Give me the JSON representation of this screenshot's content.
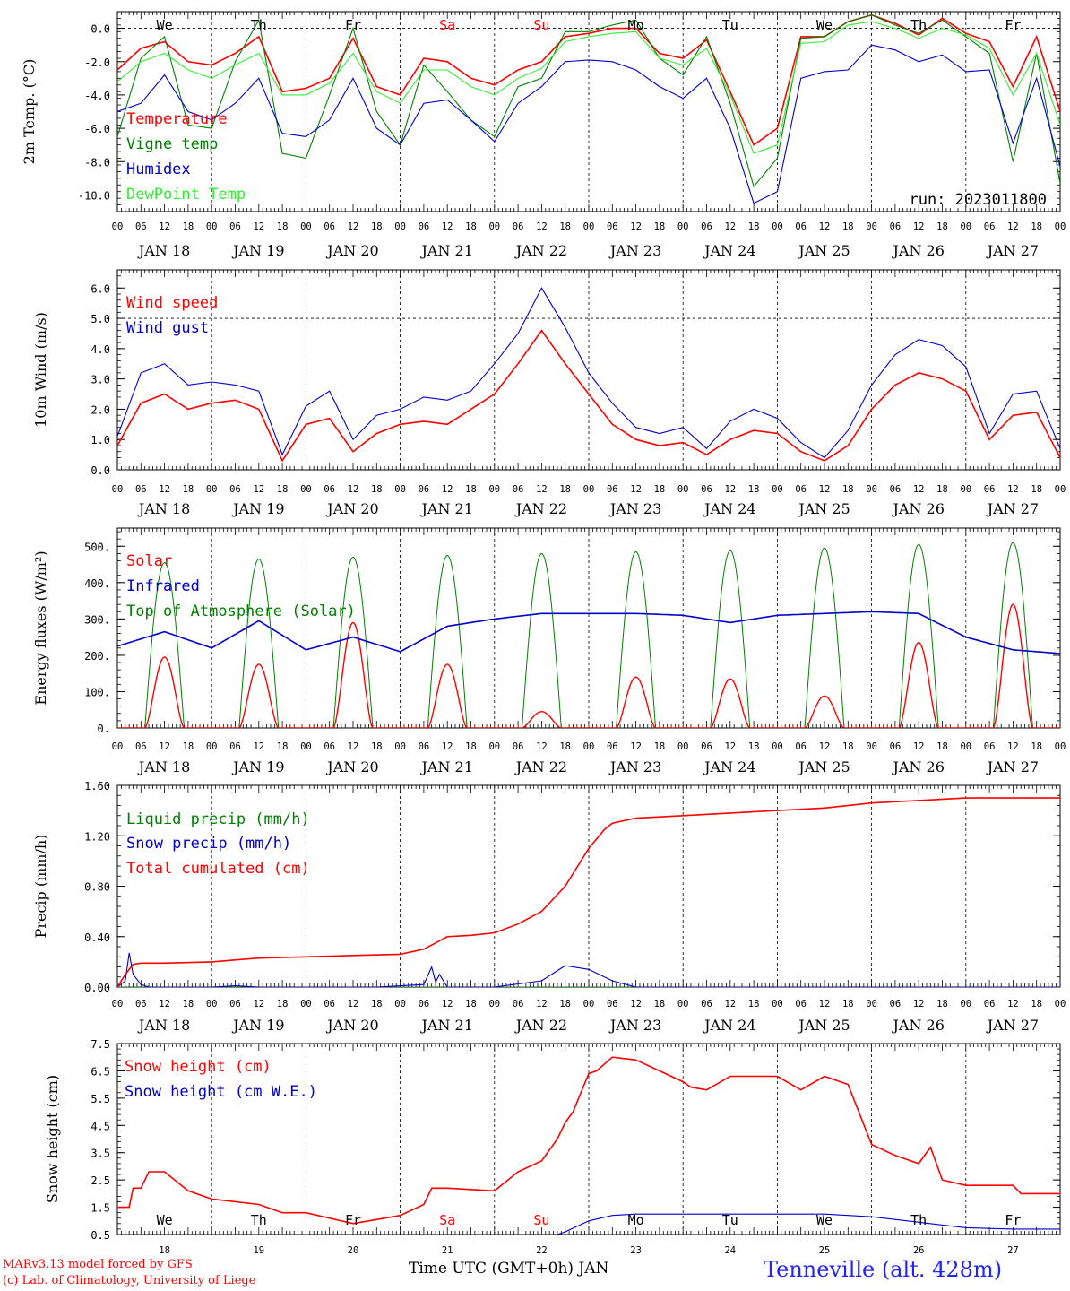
{
  "run_label": "run: 2023011800",
  "footer": {
    "model": "MARv3.13 model forced by GFS",
    "lab": "(c) Lab. of Climatology, University of Liege",
    "xaxis_title": "Time UTC (GMT+0h) JAN",
    "station": "Tenneville (alt. 428m)"
  },
  "days": [
    "18",
    "19",
    "20",
    "21",
    "22",
    "23",
    "24",
    "25",
    "26",
    "27"
  ],
  "date_labels": [
    "JAN 18",
    "JAN 19",
    "JAN 20",
    "JAN 21",
    "JAN 22",
    "JAN 23",
    "JAN 24",
    "JAN 25",
    "JAN 26",
    "JAN 27"
  ],
  "day_names": [
    "We",
    "Th",
    "Fr",
    "Sa",
    "Su",
    "Mo",
    "Tu",
    "We",
    "Th",
    "Fr"
  ],
  "day_name_colors": [
    "#000000",
    "#000000",
    "#000000",
    "#ff0000",
    "#ff0000",
    "#000000",
    "#000000",
    "#000000",
    "#000000",
    "#000000"
  ],
  "hour_ticks": [
    "00",
    "06",
    "12",
    "18"
  ],
  "chart_data": [
    {
      "type": "line",
      "ylabel": "2m Temp. (°C)",
      "ylim": [
        -11.0,
        1.0
      ],
      "yticks": [
        0.0,
        -2.0,
        -4.0,
        -6.0,
        -8.0,
        -10.0
      ],
      "ytick_labels": [
        "0.0",
        "-2.0",
        "-4.0",
        "-6.0",
        "-8.0",
        "-10.0"
      ],
      "hline": 0.0,
      "x_unit": "hours since JAN 18 00 UTC",
      "series": [
        {
          "name": "Temperature",
          "color": "#ff0000",
          "x": [
            0,
            6,
            12,
            18,
            24,
            30,
            36,
            42,
            48,
            54,
            60,
            66,
            72,
            78,
            84,
            90,
            96,
            102,
            108,
            114,
            120,
            126,
            132,
            138,
            144,
            150,
            156,
            162,
            168,
            174,
            180,
            186,
            192,
            198,
            204,
            210,
            216,
            222,
            228,
            234,
            240
          ],
          "values": [
            -2.5,
            -1.2,
            -0.8,
            -2.0,
            -2.2,
            -1.5,
            -0.5,
            -3.8,
            -3.6,
            -3.0,
            -0.6,
            -3.5,
            -4.0,
            -1.8,
            -2.0,
            -3.0,
            -3.4,
            -2.5,
            -2.0,
            -0.5,
            -0.3,
            0.0,
            0.0,
            -1.5,
            -1.8,
            -0.7,
            -3.8,
            -7.0,
            -6.0,
            -0.5,
            -0.5,
            0.4,
            0.8,
            0.3,
            -0.4,
            0.6,
            -0.3,
            -0.8,
            -3.5,
            -0.5,
            -5.0
          ]
        },
        {
          "name": "Vigne temp",
          "color": "#008000",
          "x": [
            0,
            6,
            12,
            18,
            24,
            30,
            36,
            42,
            48,
            54,
            60,
            66,
            72,
            78,
            84,
            90,
            96,
            102,
            108,
            114,
            120,
            126,
            132,
            138,
            144,
            150,
            156,
            162,
            168,
            174,
            180,
            186,
            192,
            198,
            204,
            210,
            216,
            222,
            228,
            234,
            240
          ],
          "values": [
            -6.5,
            -1.8,
            -0.5,
            -5.8,
            -6.0,
            -2.0,
            0.5,
            -7.5,
            -7.8,
            -4.0,
            0.0,
            -5.0,
            -7.0,
            -2.2,
            -3.8,
            -5.5,
            -6.5,
            -3.5,
            -3.0,
            -0.2,
            -0.2,
            0.2,
            0.5,
            -1.8,
            -2.8,
            -0.5,
            -4.5,
            -9.5,
            -7.8,
            -0.6,
            -0.5,
            0.4,
            0.8,
            0.2,
            -0.3,
            0.5,
            -0.5,
            -1.5,
            -8.0,
            -1.5,
            -9.3
          ]
        },
        {
          "name": "Humidex",
          "color": "#0000cc",
          "x": [
            0,
            6,
            12,
            18,
            24,
            30,
            36,
            42,
            48,
            54,
            60,
            66,
            72,
            78,
            84,
            90,
            96,
            102,
            108,
            114,
            120,
            126,
            132,
            138,
            144,
            150,
            156,
            162,
            168,
            174,
            180,
            186,
            192,
            198,
            204,
            210,
            216,
            222,
            228,
            234,
            240
          ],
          "values": [
            -5.0,
            -4.5,
            -2.8,
            -5.0,
            -5.5,
            -4.5,
            -3.0,
            -6.3,
            -6.5,
            -5.5,
            -3.0,
            -6.0,
            -7.0,
            -4.5,
            -4.3,
            -5.5,
            -6.8,
            -4.5,
            -3.5,
            -2.0,
            -1.9,
            -2.0,
            -2.5,
            -3.5,
            -4.2,
            -3.0,
            -6.0,
            -10.5,
            -9.8,
            -3.0,
            -2.6,
            -2.5,
            -1.0,
            -1.3,
            -2.0,
            -1.6,
            -2.6,
            -2.5,
            -6.9,
            -3.0,
            -8.3
          ]
        },
        {
          "name": "DewPoint Temp",
          "color": "#33ee33",
          "x": [
            0,
            6,
            12,
            18,
            24,
            30,
            36,
            42,
            48,
            54,
            60,
            66,
            72,
            78,
            84,
            90,
            96,
            102,
            108,
            114,
            120,
            126,
            132,
            138,
            144,
            150,
            156,
            162,
            168,
            174,
            180,
            186,
            192,
            198,
            204,
            210,
            216,
            222,
            228,
            234,
            240
          ],
          "values": [
            -3.2,
            -2.0,
            -1.5,
            -2.5,
            -3.0,
            -2.2,
            -1.5,
            -4.0,
            -4.0,
            -3.3,
            -1.5,
            -3.8,
            -4.5,
            -2.5,
            -2.5,
            -3.5,
            -4.0,
            -3.0,
            -2.4,
            -0.8,
            -0.5,
            -0.3,
            -0.2,
            -1.8,
            -2.2,
            -1.2,
            -4.0,
            -7.5,
            -7.0,
            -0.9,
            -0.8,
            0.2,
            0.4,
            0.0,
            -0.6,
            0.0,
            -0.4,
            -1.2,
            -4.0,
            -1.5,
            -5.8
          ]
        }
      ]
    },
    {
      "type": "line",
      "ylabel": "10m Wind (m/s)",
      "ylim": [
        0.0,
        6.6
      ],
      "yticks": [
        0.0,
        1.0,
        2.0,
        3.0,
        4.0,
        5.0,
        6.0
      ],
      "ytick_labels": [
        "0.0",
        "1.0",
        "2.0",
        "3.0",
        "4.0",
        "5.0",
        "6.0"
      ],
      "hline": 5.0,
      "x_unit": "hours since JAN 18 00 UTC",
      "series": [
        {
          "name": "Wind speed",
          "color": "#ff0000",
          "x": [
            0,
            6,
            12,
            18,
            24,
            30,
            36,
            42,
            48,
            54,
            60,
            66,
            72,
            78,
            84,
            90,
            96,
            102,
            108,
            114,
            120,
            126,
            132,
            138,
            144,
            150,
            156,
            162,
            168,
            174,
            180,
            186,
            192,
            198,
            204,
            210,
            216,
            222,
            228,
            234,
            240
          ],
          "values": [
            0.8,
            2.2,
            2.5,
            2.0,
            2.2,
            2.3,
            2.0,
            0.3,
            1.5,
            1.7,
            0.6,
            1.2,
            1.5,
            1.6,
            1.5,
            2.0,
            2.5,
            3.5,
            4.6,
            3.5,
            2.5,
            1.5,
            1.0,
            0.8,
            0.9,
            0.5,
            1.0,
            1.3,
            1.2,
            0.6,
            0.3,
            0.8,
            2.0,
            2.8,
            3.2,
            3.0,
            2.6,
            1.0,
            1.8,
            1.9,
            0.4
          ]
        },
        {
          "name": "Wind gust",
          "color": "#0000cc",
          "x": [
            0,
            6,
            12,
            18,
            24,
            30,
            36,
            42,
            48,
            54,
            60,
            66,
            72,
            78,
            84,
            90,
            96,
            102,
            108,
            114,
            120,
            126,
            132,
            138,
            144,
            150,
            156,
            162,
            168,
            174,
            180,
            186,
            192,
            198,
            204,
            210,
            216,
            222,
            228,
            234,
            240
          ],
          "values": [
            1.1,
            3.2,
            3.5,
            2.8,
            2.9,
            2.8,
            2.6,
            0.5,
            2.1,
            2.6,
            1.0,
            1.8,
            2.0,
            2.4,
            2.3,
            2.6,
            3.5,
            4.5,
            6.0,
            4.7,
            3.2,
            2.2,
            1.4,
            1.2,
            1.4,
            0.7,
            1.6,
            2.0,
            1.7,
            0.9,
            0.4,
            1.3,
            2.8,
            3.8,
            4.3,
            4.1,
            3.4,
            1.2,
            2.5,
            2.6,
            0.7
          ]
        }
      ]
    },
    {
      "type": "line",
      "ylabel": "Energy fluxes (W/m²)",
      "ylim": [
        0,
        550
      ],
      "yticks": [
        0,
        100,
        200,
        300,
        400,
        500
      ],
      "ytick_labels": [
        "0.",
        "100.",
        "200.",
        "300.",
        "400.",
        "500."
      ],
      "x_unit": "hours since JAN 18 00 UTC",
      "daily_peaks": {
        "solar": [
          195,
          175,
          290,
          175,
          45,
          140,
          135,
          88,
          235,
          340
        ],
        "toa_solar": [
          455,
          465,
          470,
          475,
          480,
          485,
          488,
          495,
          505,
          510
        ]
      },
      "series": [
        {
          "name": "Solar",
          "color": "#ff0000"
        },
        {
          "name": "Infrared",
          "color": "#0000cc",
          "x": [
            0,
            12,
            24,
            36,
            48,
            60,
            72,
            84,
            96,
            108,
            120,
            132,
            144,
            156,
            168,
            180,
            192,
            204,
            216,
            228,
            240
          ],
          "values": [
            225,
            265,
            220,
            295,
            215,
            250,
            210,
            280,
            300,
            315,
            315,
            315,
            310,
            290,
            310,
            315,
            320,
            315,
            250,
            215,
            205
          ]
        },
        {
          "name": "Top of Atmosphere (Solar)",
          "color": "#008000"
        }
      ]
    },
    {
      "type": "line",
      "ylabel": "Precip (mm/h)",
      "ylim": [
        0.0,
        1.6
      ],
      "yticks": [
        0.0,
        0.4,
        0.8,
        1.2,
        1.6
      ],
      "ytick_labels": [
        "0.00",
        "0.40",
        "0.80",
        "1.20",
        "1.60"
      ],
      "x_unit": "hours since JAN 18 00 UTC",
      "series": [
        {
          "name": "Liquid precip (mm/h)",
          "color": "#008000",
          "x": [
            0,
            240
          ],
          "values": [
            0.0,
            0.0
          ]
        },
        {
          "name": "Snow precip (mm/h)",
          "color": "#0000cc",
          "x": [
            0,
            2,
            3,
            4,
            6,
            8,
            12,
            24,
            30,
            36,
            48,
            66,
            78,
            80,
            81,
            82,
            84,
            96,
            108,
            114,
            120,
            126,
            132,
            144,
            156,
            168,
            180,
            192,
            204,
            216,
            228,
            240
          ],
          "values": [
            0.0,
            0.05,
            0.27,
            0.1,
            0.02,
            0.0,
            0.0,
            0.0,
            0.01,
            0.0,
            0.0,
            0.0,
            0.02,
            0.16,
            0.04,
            0.1,
            0.0,
            0.0,
            0.05,
            0.17,
            0.14,
            0.05,
            0.0,
            0.0,
            0.0,
            0.0,
            0.0,
            0.0,
            0.0,
            0.0,
            0.0,
            0.0
          ]
        },
        {
          "name": "Total cumulated (cm)",
          "color": "#ff0000",
          "x": [
            0,
            2,
            4,
            6,
            12,
            24,
            36,
            48,
            60,
            72,
            78,
            84,
            90,
            96,
            102,
            108,
            114,
            120,
            124,
            126,
            132,
            144,
            156,
            168,
            180,
            192,
            204,
            216,
            228,
            240
          ],
          "values": [
            0.0,
            0.1,
            0.18,
            0.19,
            0.19,
            0.2,
            0.23,
            0.24,
            0.25,
            0.26,
            0.3,
            0.4,
            0.41,
            0.43,
            0.5,
            0.6,
            0.8,
            1.1,
            1.25,
            1.3,
            1.34,
            1.36,
            1.38,
            1.4,
            1.42,
            1.46,
            1.48,
            1.5,
            1.5,
            1.5
          ]
        }
      ]
    },
    {
      "type": "line",
      "ylabel": "Snow height (cm)",
      "ylim": [
        0.5,
        7.5
      ],
      "yticks": [
        0.5,
        1.5,
        2.5,
        3.5,
        4.5,
        5.5,
        6.5,
        7.5
      ],
      "ytick_labels": [
        "0.5",
        "1.5",
        "2.5",
        "3.5",
        "4.5",
        "5.5",
        "6.5",
        "7.5"
      ],
      "x_unit": "hours since JAN 18 00 UTC",
      "series": [
        {
          "name": "Snow height (cm)",
          "color": "#ff0000",
          "x": [
            0,
            3,
            4,
            6,
            8,
            12,
            18,
            24,
            36,
            42,
            48,
            60,
            72,
            78,
            80,
            84,
            96,
            102,
            108,
            112,
            114,
            116,
            120,
            122,
            126,
            132,
            144,
            146,
            150,
            156,
            168,
            174,
            180,
            186,
            192,
            198,
            204,
            207,
            210,
            216,
            228,
            230,
            240
          ],
          "values": [
            1.5,
            1.5,
            2.2,
            2.2,
            2.8,
            2.8,
            2.1,
            1.8,
            1.6,
            1.3,
            1.3,
            0.9,
            1.2,
            1.6,
            2.2,
            2.2,
            2.1,
            2.8,
            3.2,
            4.0,
            4.6,
            5.0,
            6.4,
            6.5,
            7.0,
            6.9,
            6.1,
            5.9,
            5.8,
            6.3,
            6.3,
            5.8,
            6.3,
            6.0,
            3.8,
            3.4,
            3.1,
            3.7,
            2.5,
            2.3,
            2.3,
            2.0,
            2.0
          ]
        },
        {
          "name": "Snow height (cm W.E.)",
          "color": "#0000cc",
          "x": [
            112,
            114,
            120,
            126,
            132,
            144,
            156,
            168,
            180,
            192,
            204,
            216,
            228,
            240
          ],
          "values": [
            0.5,
            0.6,
            1.0,
            1.2,
            1.25,
            1.25,
            1.25,
            1.25,
            1.25,
            1.15,
            0.95,
            0.75,
            0.7,
            0.7
          ]
        }
      ]
    }
  ]
}
